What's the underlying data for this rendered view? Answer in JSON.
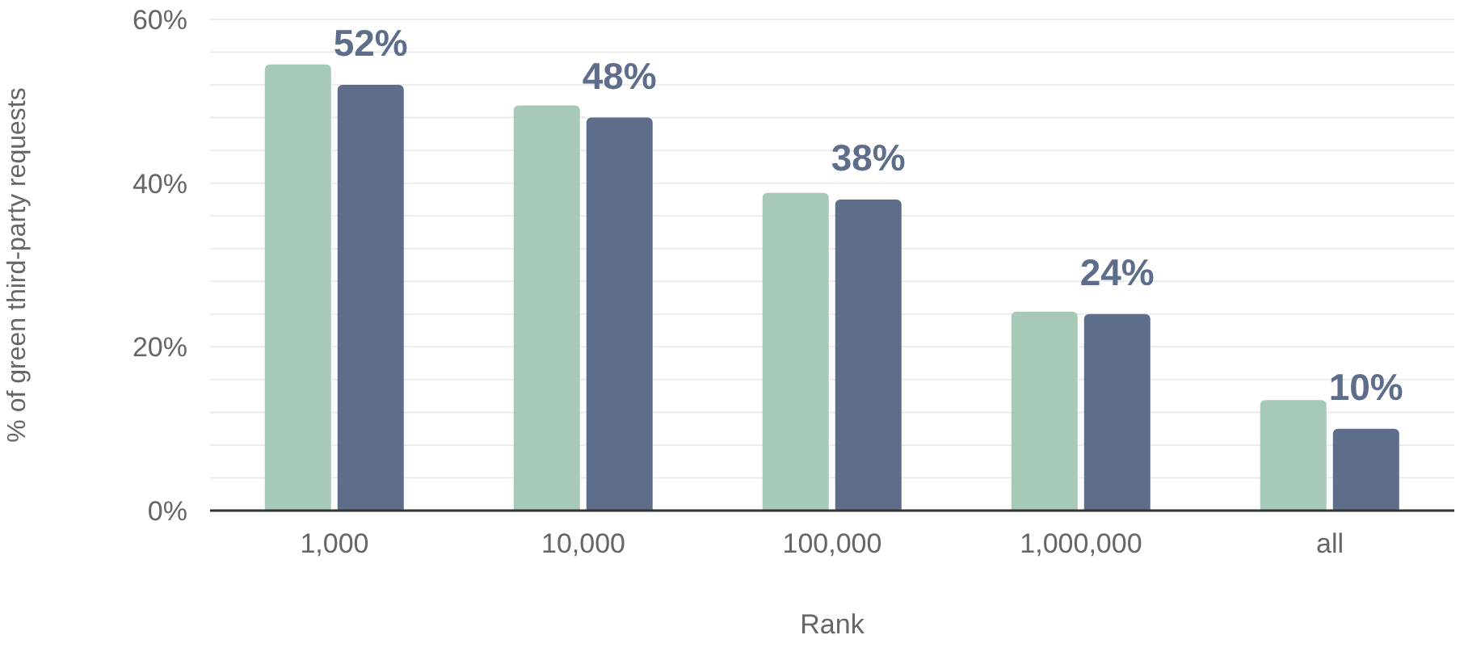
{
  "chart_data": {
    "type": "bar",
    "xlabel": "Rank",
    "ylabel": "% of green third-party requests",
    "categories": [
      "1,000",
      "10,000",
      "100,000",
      "1,000,000",
      "all"
    ],
    "series": [
      {
        "color": "#a7c9b8",
        "values": [
          54.5,
          49.5,
          38.8,
          24.3,
          13.5
        ]
      },
      {
        "color": "#5e6d8a",
        "values": [
          52,
          48,
          38,
          24,
          10
        ],
        "value_labels": [
          "52%",
          "48%",
          "38%",
          "24%",
          "10%"
        ]
      }
    ],
    "ylim": [
      0,
      60
    ],
    "yticks": [
      {
        "value": 0,
        "label": "0%"
      },
      {
        "value": 4,
        "label": null
      },
      {
        "value": 8,
        "label": null
      },
      {
        "value": 12,
        "label": null
      },
      {
        "value": 16,
        "label": null
      },
      {
        "value": 20,
        "label": "20%"
      },
      {
        "value": 24,
        "label": null
      },
      {
        "value": 28,
        "label": null
      },
      {
        "value": 32,
        "label": null
      },
      {
        "value": 36,
        "label": null
      },
      {
        "value": 40,
        "label": "40%"
      },
      {
        "value": 44,
        "label": null
      },
      {
        "value": 48,
        "label": null
      },
      {
        "value": 52,
        "label": null
      },
      {
        "value": 56,
        "label": null
      },
      {
        "value": 60,
        "label": "60%"
      }
    ],
    "grid": "y"
  }
}
